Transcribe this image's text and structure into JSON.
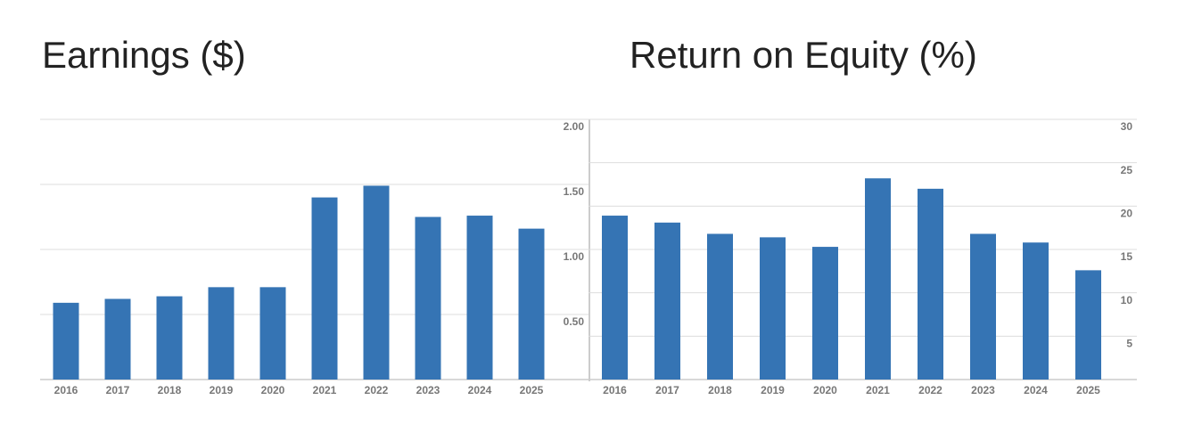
{
  "chart_data": [
    {
      "type": "bar",
      "title": "Earnings ($)",
      "categories": [
        "2016",
        "2017",
        "2018",
        "2019",
        "2020",
        "2021",
        "2022",
        "2023",
        "2024",
        "2025"
      ],
      "values": [
        0.59,
        0.62,
        0.64,
        0.71,
        0.71,
        1.4,
        1.49,
        1.25,
        1.26,
        1.16
      ],
      "color": "#3574b4",
      "ylim": [
        0,
        2
      ],
      "yticks": [
        {
          "value": 0.5,
          "label": "0.50"
        },
        {
          "value": 1,
          "label": "1.00"
        },
        {
          "value": 1.5,
          "label": "1.50"
        },
        {
          "value": 2,
          "label": "2.00"
        }
      ],
      "grid": true
    },
    {
      "type": "bar",
      "title": "Return on Equity (%)",
      "categories": [
        "2016",
        "2017",
        "2018",
        "2019",
        "2020",
        "2021",
        "2022",
        "2023",
        "2024",
        "2025"
      ],
      "values": [
        18.9,
        18.1,
        16.8,
        16.4,
        15.3,
        23.2,
        22.0,
        16.8,
        15.8,
        12.6
      ],
      "color": "#3574b4",
      "ylim": [
        0,
        30
      ],
      "yticks": [
        5,
        10,
        15,
        20,
        25,
        30
      ],
      "grid": true
    }
  ]
}
